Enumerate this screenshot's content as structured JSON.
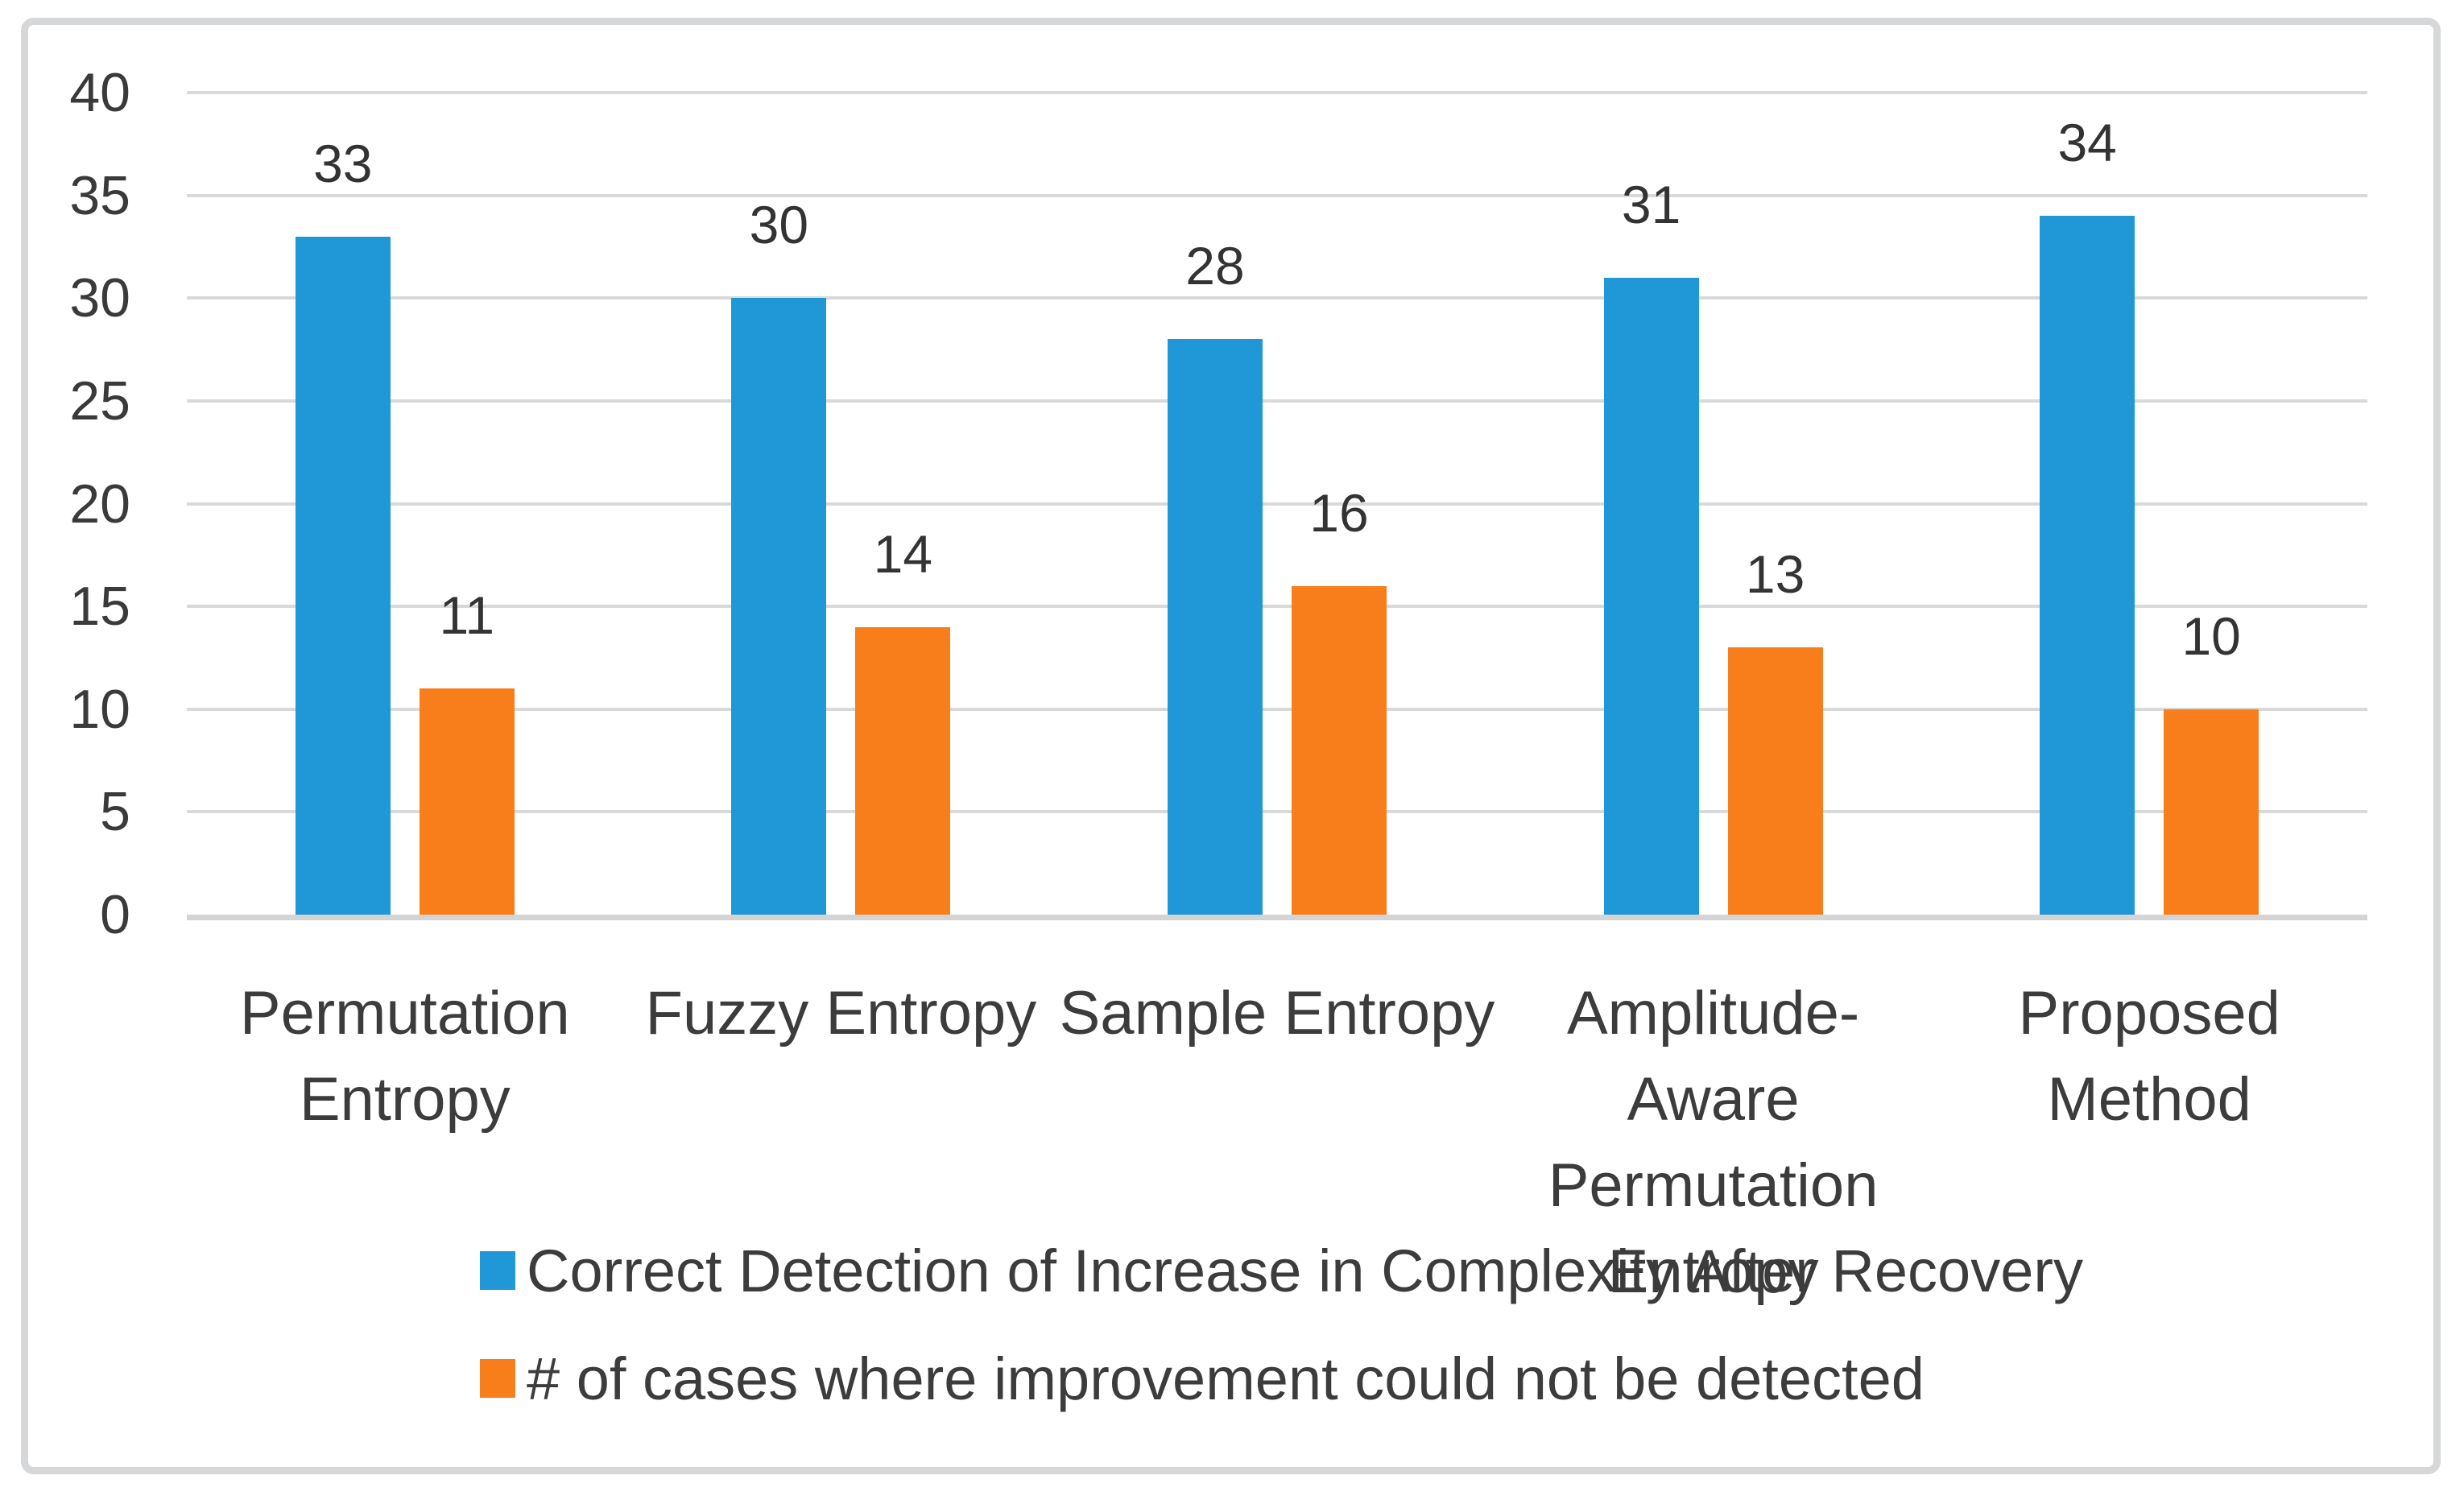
{
  "chart_data": {
    "type": "bar",
    "title": "",
    "xlabel": "",
    "ylabel": "",
    "categories": [
      "Permutation Entropy",
      "Fuzzy Entropy",
      "Sample Entropy",
      "Amplitude-Aware Permutation Entropy",
      "Proposed Method"
    ],
    "category_label_lines": [
      [
        "Permutation",
        "Entropy"
      ],
      [
        "Fuzzy Entropy"
      ],
      [
        "Sample Entropy"
      ],
      [
        "Amplitude-Aware",
        "Permutation",
        "Entropy"
      ],
      [
        "Proposed",
        "Method"
      ]
    ],
    "series": [
      {
        "name": "Correct Detection of Increase in Complexity After Recovery",
        "color": "#2098d7",
        "values": [
          33,
          30,
          28,
          31,
          34
        ]
      },
      {
        "name": "# of cases where improvement could not be detected",
        "color": "#f87e1c",
        "values": [
          11,
          14,
          16,
          13,
          10
        ]
      }
    ],
    "data_labels_shown": true,
    "ylim": [
      0,
      40
    ],
    "ytick_step": 5,
    "ytick_labels": [
      "0",
      "5",
      "10",
      "15",
      "20",
      "25",
      "30",
      "35",
      "40"
    ],
    "grid": true,
    "gridline_color": "#d9d9d9",
    "axis_line_color": "#d4d4d4",
    "text_color": "#3c3c3c",
    "frame_border_color": "#d6d7d8",
    "background_color": "#ffffff",
    "legend_position": "bottom-left"
  }
}
